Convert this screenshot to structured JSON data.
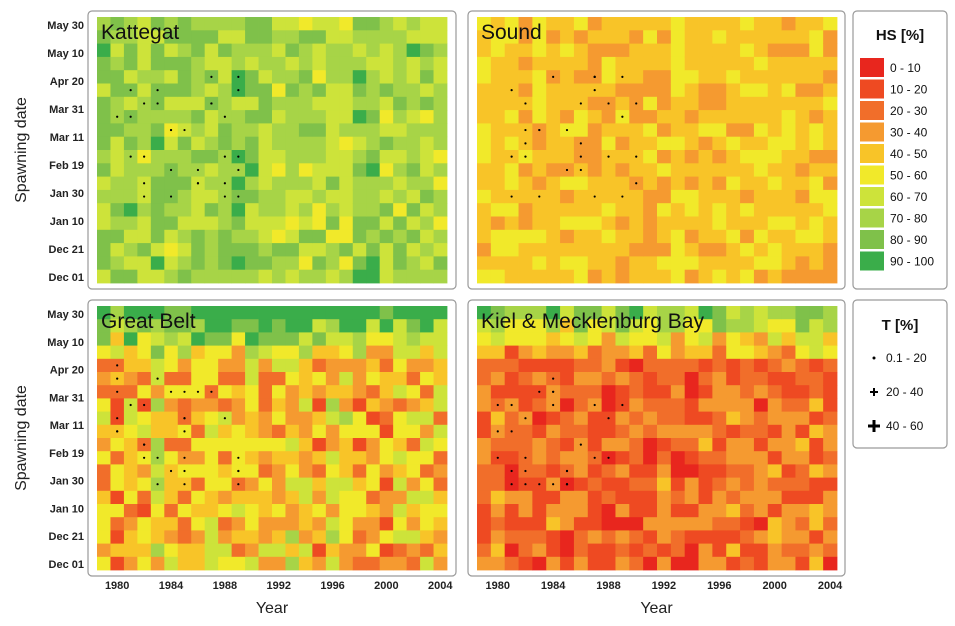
{
  "chart_data": {
    "type": "heatmap",
    "xlabel": "Year",
    "ylabel": "Spawning date",
    "x_range": [
      1979,
      2004
    ],
    "x_ticks": [
      "1980",
      "1984",
      "1988",
      "1992",
      "1996",
      "2000",
      "2004"
    ],
    "y_ticks": [
      "May 30",
      "May 10",
      "Apr 20",
      "Mar 31",
      "Mar 11",
      "Feb 19",
      "Jan 30",
      "Jan 10",
      "Dec 21",
      "Dec 01"
    ],
    "hs_legend": {
      "title": "HS [%]",
      "bins": [
        {
          "label": "0 - 10",
          "color": "#e8261e"
        },
        {
          "label": "10 - 20",
          "color": "#ee4a22"
        },
        {
          "label": "20 - 30",
          "color": "#f16e2a"
        },
        {
          "label": "30 - 40",
          "color": "#f59a30"
        },
        {
          "label": "40 - 50",
          "color": "#f8c428"
        },
        {
          "label": "50 - 60",
          "color": "#f1e92a"
        },
        {
          "label": "60 - 70",
          "color": "#cde33a"
        },
        {
          "label": "70 - 80",
          "color": "#a7d447"
        },
        {
          "label": "80 - 90",
          "color": "#7fc14a"
        },
        {
          "label": "90 - 100",
          "color": "#3aad4a"
        }
      ]
    },
    "t_legend": {
      "title": "T [%]",
      "bins": [
        {
          "label": "0.1 - 20",
          "symbol": "dot"
        },
        {
          "label": "20 - 40",
          "symbol": "plus-small"
        },
        {
          "label": "40 - 60",
          "symbol": "plus-large"
        }
      ]
    },
    "panels": [
      {
        "title": "Kattegat",
        "mean_hs": 75,
        "variability": 14
      },
      {
        "title": "Sound",
        "mean_hs": 45,
        "variability": 9
      },
      {
        "title": "Great Belt",
        "mean_hs": 45,
        "variability": 22,
        "spring_high": true
      },
      {
        "title": "Kiel & Mecklenburg Bay",
        "mean_hs": 25,
        "variability": 16,
        "spring_high": true
      }
    ]
  }
}
